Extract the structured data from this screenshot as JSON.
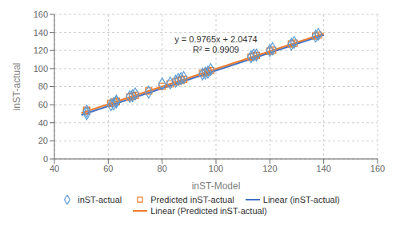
{
  "chart_data": {
    "type": "scatter",
    "xlabel": "inST-Model",
    "ylabel": "inST-actual",
    "xlim": [
      40,
      160
    ],
    "ylim": [
      0,
      160
    ],
    "xticks": [
      40,
      60,
      80,
      100,
      120,
      140,
      160
    ],
    "yticks": [
      0,
      20,
      40,
      60,
      80,
      100,
      120,
      140,
      160
    ],
    "grid": true,
    "series": [
      {
        "name": "inST-actual",
        "type": "scatter",
        "marker": "diamond",
        "color": "#5B9BD5",
        "x": [
          52,
          52,
          61,
          62,
          63,
          63,
          68,
          69,
          70,
          75,
          80,
          83,
          85,
          86,
          87,
          88,
          95,
          96,
          97,
          98,
          113,
          114,
          115,
          120,
          121,
          128,
          129,
          137,
          138
        ],
        "values": [
          50,
          53,
          60,
          61,
          63,
          64,
          69,
          70,
          72,
          74,
          83,
          84,
          86,
          88,
          89,
          90,
          94,
          95,
          96,
          99,
          113,
          115,
          115,
          120,
          122,
          127,
          129,
          136,
          138
        ]
      },
      {
        "name": "Predicted inST-actual",
        "type": "scatter",
        "marker": "square",
        "color": "#ED7D31",
        "x": [
          52,
          52,
          61,
          62,
          63,
          63,
          68,
          69,
          70,
          75,
          80,
          83,
          85,
          86,
          87,
          88,
          95,
          96,
          97,
          98,
          113,
          114,
          115,
          120,
          121,
          128,
          129,
          137,
          138
        ],
        "values": [
          52.9,
          53.9,
          61.6,
          62.6,
          63.6,
          63.6,
          68.4,
          69.4,
          70.4,
          75.3,
          80.2,
          83.1,
          85.1,
          86.1,
          87.1,
          88.1,
          94.8,
          95.8,
          96.8,
          97.8,
          112.6,
          113.6,
          114.5,
          119.3,
          120.3,
          127.1,
          128.1,
          136.0,
          137.0
        ]
      },
      {
        "name": "Linear (inST-actual)",
        "type": "line",
        "color": "#4472C4",
        "x": [
          50,
          140
        ],
        "values": [
          48.67,
          137.212
        ]
      },
      {
        "name": "Linear (Predicted inST-actual)",
        "type": "line",
        "color": "#ED7D31",
        "x": [
          50,
          140
        ],
        "values": [
          50.8724,
          138.7574
        ]
      }
    ],
    "annotations": [
      {
        "text": "y = 0.9765x + 2.0474\nR² = 0.9909",
        "x": 100,
        "y": 138
      }
    ]
  }
}
